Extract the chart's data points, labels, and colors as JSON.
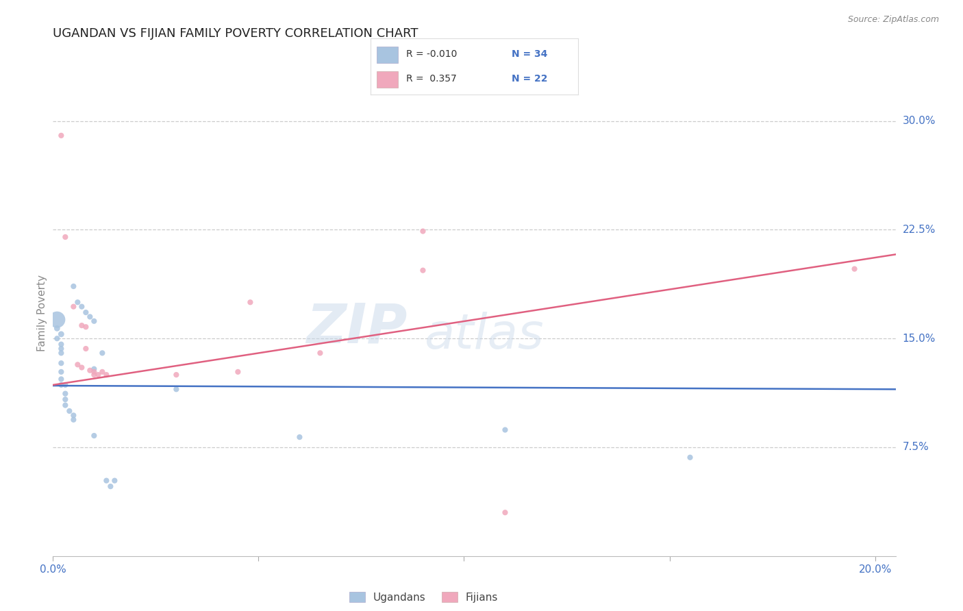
{
  "title": "UGANDAN VS FIJIAN FAMILY POVERTY CORRELATION CHART",
  "source": "Source: ZipAtlas.com",
  "ylabel": "Family Poverty",
  "xlim": [
    0.0,
    0.205
  ],
  "ylim": [
    0.0,
    0.335
  ],
  "yticks": [
    0.075,
    0.15,
    0.225,
    0.3
  ],
  "ytick_labels": [
    "7.5%",
    "15.0%",
    "22.5%",
    "30.0%"
  ],
  "xticks": [
    0.0,
    0.05,
    0.1,
    0.15,
    0.2
  ],
  "xtick_labels": [
    "0.0%",
    "",
    "",
    "",
    "20.0%"
  ],
  "grid_color": "#cccccc",
  "background_color": "#ffffff",
  "ugandan_color": "#a8c4e0",
  "fijian_color": "#f0a8bc",
  "ugandan_line_color": "#4472c4",
  "fijian_line_color": "#e06080",
  "blue_text": "#4472c4",
  "title_color": "#222222",
  "ugandan_N": 34,
  "fijian_N": 22,
  "ugandan_line": [
    [
      0.0,
      0.1175
    ],
    [
      0.205,
      0.115
    ]
  ],
  "fijian_line": [
    [
      0.0,
      0.118
    ],
    [
      0.205,
      0.208
    ]
  ],
  "ugandan_points": [
    [
      0.001,
      0.163
    ],
    [
      0.001,
      0.157
    ],
    [
      0.001,
      0.15
    ],
    [
      0.002,
      0.153
    ],
    [
      0.002,
      0.146
    ],
    [
      0.002,
      0.143
    ],
    [
      0.002,
      0.14
    ],
    [
      0.002,
      0.133
    ],
    [
      0.002,
      0.127
    ],
    [
      0.002,
      0.122
    ],
    [
      0.002,
      0.118
    ],
    [
      0.003,
      0.118
    ],
    [
      0.003,
      0.112
    ],
    [
      0.003,
      0.108
    ],
    [
      0.003,
      0.104
    ],
    [
      0.004,
      0.1
    ],
    [
      0.005,
      0.097
    ],
    [
      0.005,
      0.094
    ],
    [
      0.005,
      0.186
    ],
    [
      0.006,
      0.175
    ],
    [
      0.007,
      0.172
    ],
    [
      0.008,
      0.168
    ],
    [
      0.009,
      0.165
    ],
    [
      0.01,
      0.162
    ],
    [
      0.01,
      0.083
    ],
    [
      0.01,
      0.129
    ],
    [
      0.012,
      0.14
    ],
    [
      0.013,
      0.052
    ],
    [
      0.014,
      0.048
    ],
    [
      0.015,
      0.052
    ],
    [
      0.03,
      0.115
    ],
    [
      0.06,
      0.082
    ],
    [
      0.11,
      0.087
    ],
    [
      0.155,
      0.068
    ]
  ],
  "ugandan_sizes": [
    300,
    40,
    35,
    40,
    35,
    35,
    35,
    35,
    35,
    35,
    35,
    35,
    35,
    35,
    35,
    35,
    35,
    35,
    35,
    35,
    35,
    35,
    35,
    35,
    35,
    35,
    35,
    35,
    35,
    35,
    35,
    35,
    35,
    35
  ],
  "fijian_points": [
    [
      0.002,
      0.29
    ],
    [
      0.003,
      0.22
    ],
    [
      0.005,
      0.172
    ],
    [
      0.006,
      0.132
    ],
    [
      0.007,
      0.159
    ],
    [
      0.007,
      0.13
    ],
    [
      0.008,
      0.158
    ],
    [
      0.008,
      0.143
    ],
    [
      0.009,
      0.128
    ],
    [
      0.01,
      0.127
    ],
    [
      0.01,
      0.125
    ],
    [
      0.011,
      0.125
    ],
    [
      0.012,
      0.127
    ],
    [
      0.013,
      0.125
    ],
    [
      0.03,
      0.125
    ],
    [
      0.045,
      0.127
    ],
    [
      0.048,
      0.175
    ],
    [
      0.065,
      0.14
    ],
    [
      0.09,
      0.224
    ],
    [
      0.09,
      0.197
    ],
    [
      0.11,
      0.03
    ],
    [
      0.195,
      0.198
    ]
  ],
  "fijian_sizes": [
    35,
    35,
    35,
    35,
    35,
    35,
    35,
    35,
    35,
    35,
    35,
    35,
    35,
    35,
    35,
    35,
    35,
    35,
    35,
    35,
    35,
    35
  ]
}
